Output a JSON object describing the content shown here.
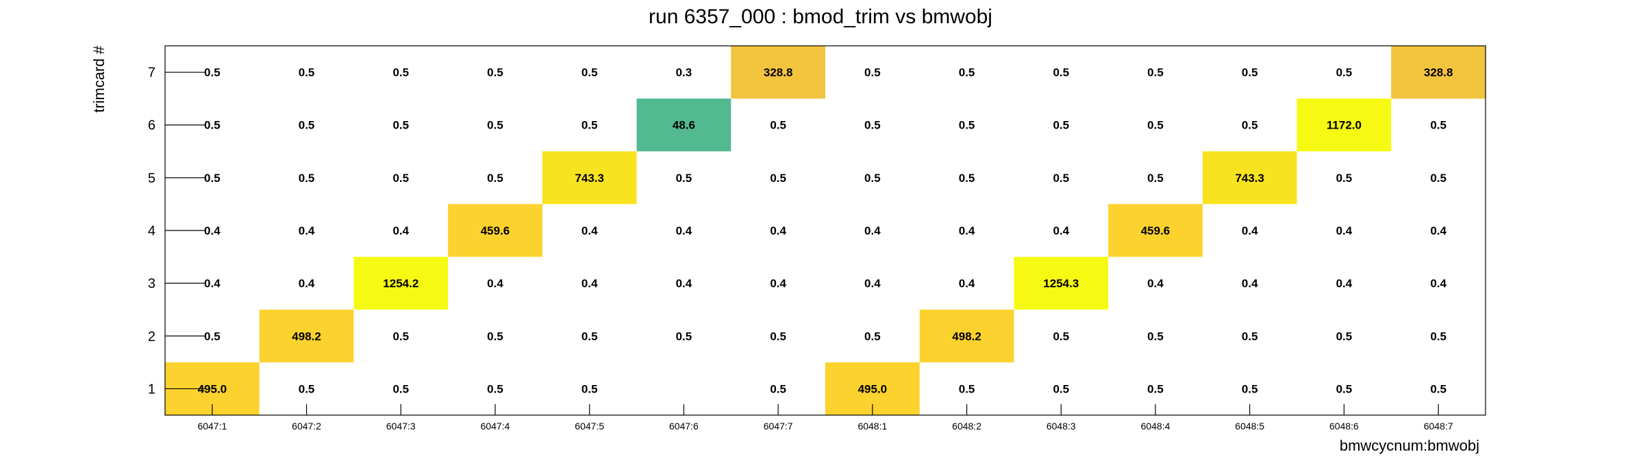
{
  "chart_data": {
    "type": "heatmap",
    "title": "run 6357_000 : bmod_trim vs bmwobj",
    "xlabel": "bmwcycnum:bmwobj",
    "ylabel": "trimcard #",
    "x_categories": [
      "6047:1",
      "6047:2",
      "6047:3",
      "6047:4",
      "6047:5",
      "6047:6",
      "6047:7",
      "6048:1",
      "6048:2",
      "6048:3",
      "6048:4",
      "6048:5",
      "6048:6",
      "6048:7"
    ],
    "y_categories": [
      "1",
      "2",
      "3",
      "4",
      "5",
      "6",
      "7"
    ],
    "values": [
      [
        495.0,
        0.5,
        0.5,
        0.5,
        0.5,
        null,
        0.5,
        495.0,
        0.5,
        0.5,
        0.5,
        0.5,
        0.5,
        0.5
      ],
      [
        0.5,
        498.2,
        0.5,
        0.5,
        0.5,
        0.5,
        0.5,
        0.5,
        498.2,
        0.5,
        0.5,
        0.5,
        0.5,
        0.5
      ],
      [
        0.4,
        0.4,
        1254.2,
        0.4,
        0.4,
        0.4,
        0.4,
        0.4,
        0.4,
        1254.3,
        0.4,
        0.4,
        0.4,
        0.4
      ],
      [
        0.4,
        0.4,
        0.4,
        459.6,
        0.4,
        0.4,
        0.4,
        0.4,
        0.4,
        0.4,
        459.6,
        0.4,
        0.4,
        0.4
      ],
      [
        0.5,
        0.5,
        0.5,
        0.5,
        743.3,
        0.5,
        0.5,
        0.5,
        0.5,
        0.5,
        0.5,
        743.3,
        0.5,
        0.5
      ],
      [
        0.5,
        0.5,
        0.5,
        0.5,
        0.5,
        48.6,
        0.5,
        0.5,
        0.5,
        0.5,
        0.5,
        0.5,
        1172.0,
        0.5
      ],
      [
        0.5,
        0.5,
        0.5,
        0.5,
        0.5,
        0.3,
        328.8,
        0.5,
        0.5,
        0.5,
        0.5,
        0.5,
        0.5,
        328.8
      ]
    ],
    "colored_threshold": 1,
    "color_scale": [
      {
        "max": 100,
        "color": "#52b991"
      },
      {
        "max": 400,
        "color": "#f3c43d"
      },
      {
        "max": 550,
        "color": "#fbd22e"
      },
      {
        "max": 1000,
        "color": "#f8e320"
      },
      {
        "max": 100000,
        "color": "#f6fa13"
      }
    ],
    "grid": false,
    "legend": "none"
  }
}
